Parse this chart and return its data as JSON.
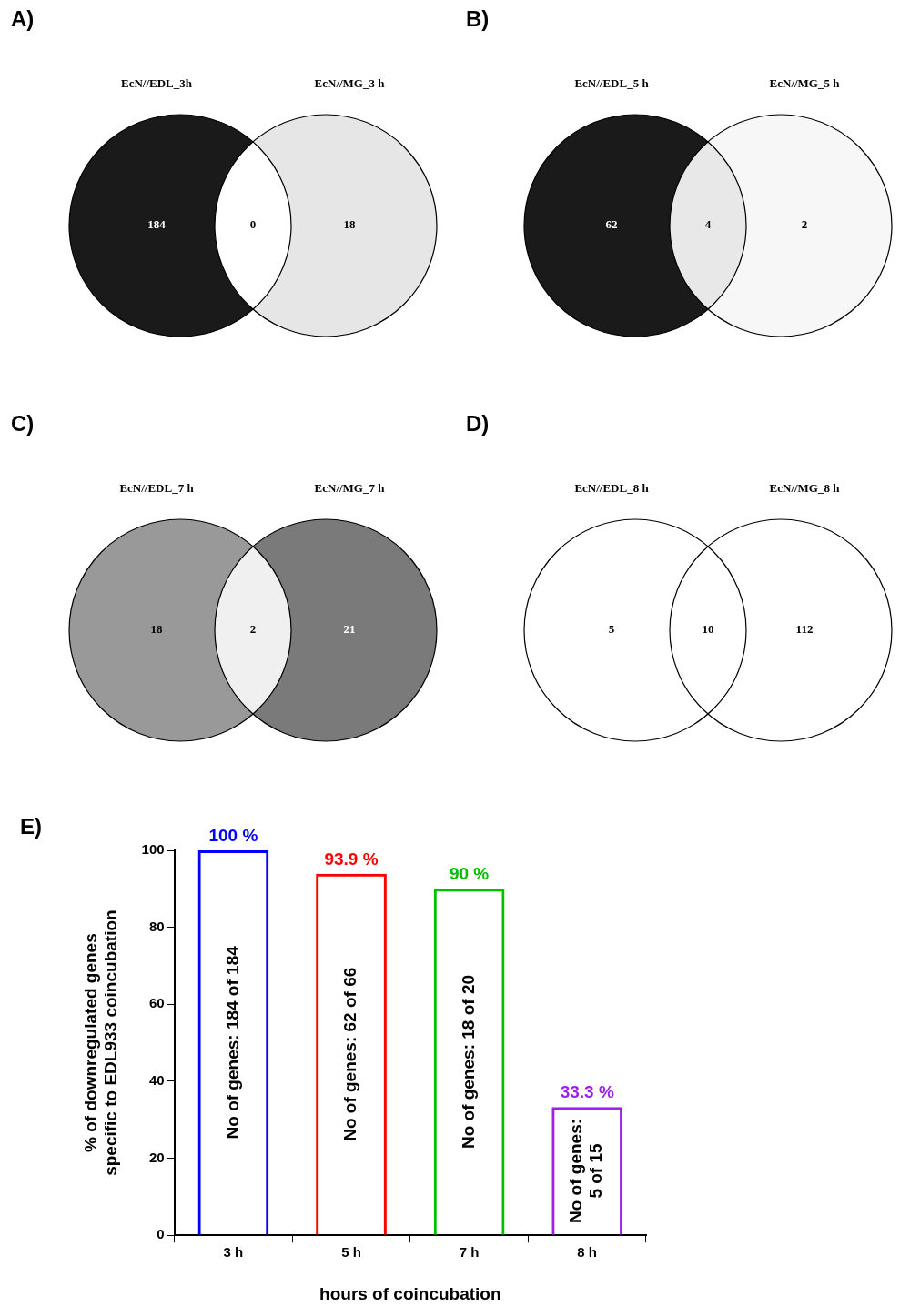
{
  "chart_data": [
    {
      "type": "other",
      "title": "A)",
      "categories": [
        "EcN//EDL_3h",
        null,
        "EcN//MG_3 h"
      ],
      "values": [
        184,
        0,
        18
      ],
      "data_labels": true,
      "colors": [
        "#1a1a1a",
        "#ffffff",
        "#e6e6e6"
      ]
    },
    {
      "type": "other",
      "title": "B)",
      "categories": [
        "EcN//EDL_5 h",
        null,
        "EcN//MG_5 h"
      ],
      "values": [
        62,
        4,
        2
      ],
      "data_labels": true,
      "colors": [
        "#1a1a1a",
        "#e8e8e8",
        "#f7f7f7"
      ]
    },
    {
      "type": "other",
      "title": "C)",
      "categories": [
        "EcN//EDL_7 h",
        null,
        "EcN//MG_7 h"
      ],
      "values": [
        18,
        2,
        21
      ],
      "data_labels": true,
      "colors": [
        "#999999",
        "#f0f0f0",
        "#7a7a7a"
      ]
    },
    {
      "type": "other",
      "title": "D)",
      "categories": [
        "EcN//EDL_8 h",
        null,
        "EcN//MG_8 h"
      ],
      "values": [
        5,
        10,
        112
      ],
      "data_labels": true,
      "colors": [
        "#ffffff",
        "#ffffff",
        "#ffffff"
      ]
    },
    {
      "type": "bar",
      "title": "E)",
      "ylabel": "% of downregulated genes\nspecific to EDL933 coincubation",
      "xlabel": "hours of coincubation",
      "categories": [
        "3 h",
        "5 h",
        "7 h",
        "8 h"
      ],
      "values": [
        100,
        93.9,
        90,
        33.3
      ],
      "colors": [
        "#0000ff",
        "#ff0000",
        "#00c000",
        "#a020f0"
      ],
      "value_labels": [
        "100 %",
        "93.9 %",
        "90 %",
        "33.3 %"
      ],
      "ylim": [
        0,
        100
      ],
      "yticks": [
        0,
        20,
        40,
        60,
        80,
        100
      ],
      "grid": false,
      "legend": false,
      "annotations": [
        "No of genes: 184 of 184",
        "No of genes: 62 of 66",
        "No of genes: 18 of 20",
        "No of genes:\n5 of 15"
      ]
    }
  ]
}
